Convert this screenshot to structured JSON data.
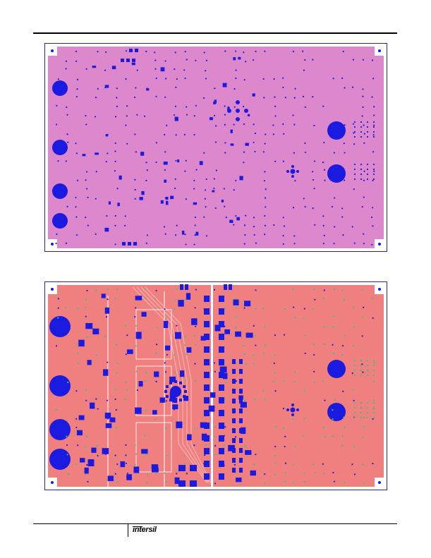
{
  "footer": {
    "brand_text": "intersil"
  },
  "figures": [
    {
      "id": "top-layer",
      "board_color": "#dd88cc",
      "outline_color": "#2222cc",
      "pad_color": "#1a1ae0"
    },
    {
      "id": "bottom-layer",
      "board_color": "#f08080",
      "trace_color": "#ffb0b0",
      "outline_color": "#2222cc",
      "pad_color": "#1a1ae0",
      "via_color": "#2ecc71"
    }
  ]
}
